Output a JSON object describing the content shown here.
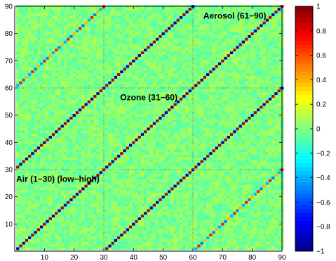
{
  "chart_data": {
    "type": "heatmap",
    "title": "",
    "xlabel": "",
    "ylabel": "",
    "n": 90,
    "xlim": [
      1,
      90
    ],
    "ylim": [
      1,
      90
    ],
    "x_ticks": [
      10,
      20,
      30,
      40,
      50,
      60,
      70,
      80,
      90
    ],
    "y_ticks": [
      10,
      20,
      30,
      40,
      50,
      60,
      70,
      80,
      90
    ],
    "block_dividers": [
      30.5,
      60.5
    ],
    "colormap": "jet",
    "clim": [
      -1,
      1
    ],
    "colorbar_ticks": [
      -1,
      -0.8,
      -0.6,
      -0.4,
      -0.2,
      0,
      0.2,
      0.4,
      0.6,
      0.8,
      1
    ],
    "colorbar_labels": [
      "−1",
      "−0.8",
      "−0.6",
      "−0.4",
      "−0.2",
      "0",
      "0.2",
      "0.4",
      "0.6",
      "0.8",
      "1"
    ],
    "background_level": 0.1,
    "diagonal_patterns": [
      {
        "offset": 0,
        "from": 1,
        "to": 90,
        "values": [
          -0.9,
          0.9
        ]
      },
      {
        "offset": 30,
        "from": 1,
        "to": 60,
        "values": [
          0.9,
          -0.9
        ]
      },
      {
        "offset": -30,
        "from": 31,
        "to": 90,
        "values": [
          0.9,
          -0.9
        ]
      },
      {
        "offset": 60,
        "from": 1,
        "to": 30,
        "values": [
          -0.4,
          0.7,
          -0.5,
          0.4
        ]
      },
      {
        "offset": -60,
        "from": 61,
        "to": 90,
        "values": [
          -0.4,
          0.7,
          -0.5,
          0.4
        ]
      }
    ],
    "block_labels": [
      {
        "text": "Air (1−30) (low−high)",
        "x": 1,
        "y": 26
      },
      {
        "text": "Ozone (31−60)",
        "x": 36,
        "y": 56
      },
      {
        "text": "Aerosol (61−90)",
        "x": 64,
        "y": 86
      }
    ]
  }
}
